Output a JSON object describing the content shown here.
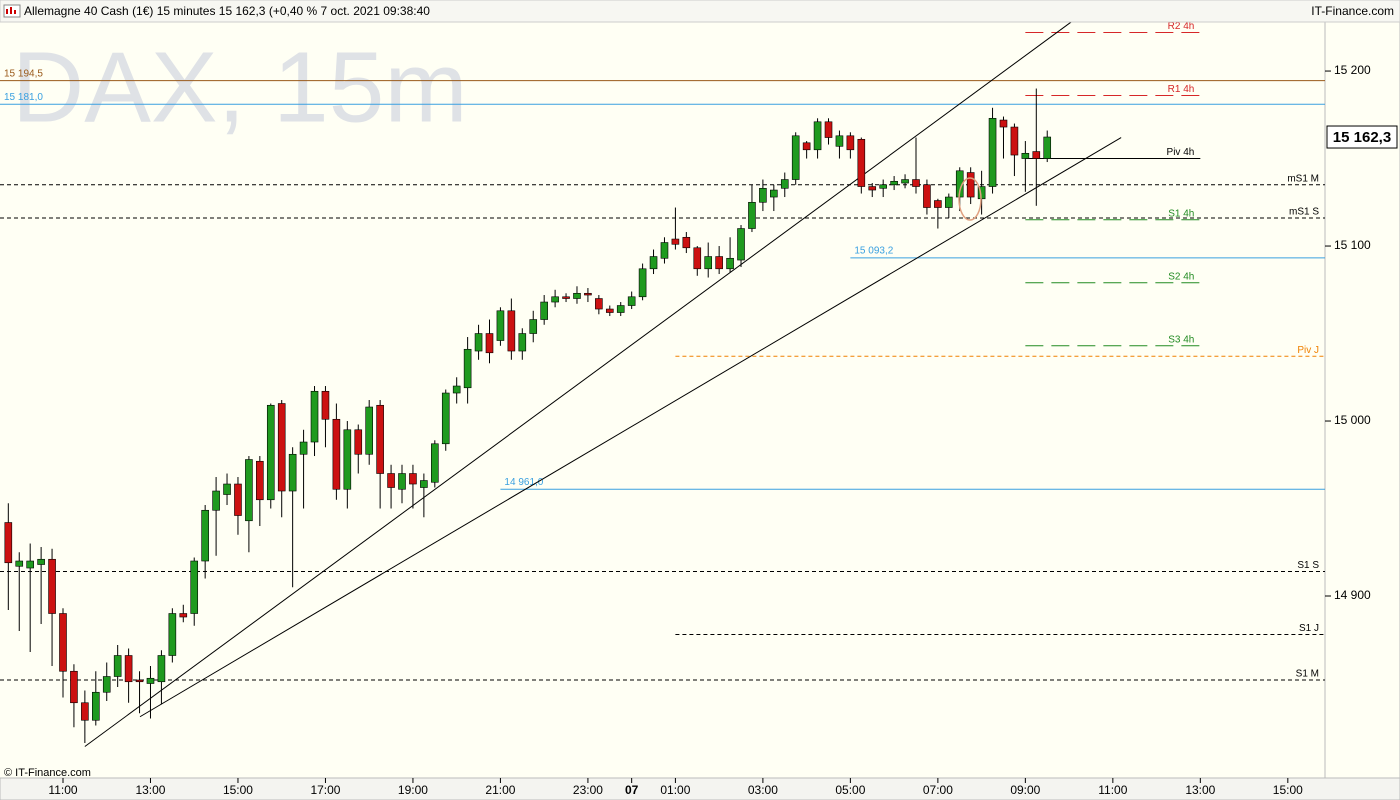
{
  "chart_data": {
    "type": "candlestick",
    "title": "Allemagne 40 Cash (1€) 15 minutes 15 162,3 (+0,40 % 7 oct. 2021 09:38:40",
    "source": "IT-Finance.com",
    "watermark": "DAX, 15m",
    "copyright": "© IT-Finance.com",
    "up_color": "#1f9a1f",
    "down_color": "#cc1111",
    "x": [
      9.75,
      10,
      10.25,
      10.5,
      10.75,
      11,
      11.25,
      11.5,
      11.75,
      12,
      12.25,
      12.5,
      12.75,
      13,
      13.25,
      13.5,
      13.75,
      14,
      14.25,
      14.5,
      14.75,
      15,
      15.25,
      15.5,
      15.75,
      16,
      16.25,
      16.5,
      16.75,
      17,
      17.25,
      17.5,
      17.75,
      18,
      18.25,
      18.5,
      18.75,
      19,
      19.25,
      19.5,
      19.75,
      20,
      20.25,
      20.5,
      20.75,
      21,
      21.25,
      21.5,
      21.75,
      22,
      22.25,
      22.5,
      22.75,
      23,
      23.25,
      23.5,
      23.75,
      24,
      24.25,
      24.5,
      24.75,
      25,
      25.25,
      25.5,
      25.75,
      26,
      26.25,
      26.5,
      26.75,
      27,
      27.25,
      27.5,
      27.75,
      28,
      28.25,
      28.5,
      28.75,
      29,
      29.25,
      29.5,
      29.75,
      30,
      30.25,
      30.5,
      30.75,
      31,
      31.25,
      31.5,
      31.75,
      32,
      32.25,
      32.5,
      32.75,
      33,
      33.25,
      33.5
    ],
    "open": [
      14942,
      14917,
      14916,
      14918,
      14921,
      14890,
      14857,
      14839,
      14829,
      14845,
      14854,
      14866,
      14852,
      14850,
      14851,
      14866,
      14890,
      14890,
      14920,
      14949,
      14958,
      14964,
      14943,
      14977,
      14955,
      15010,
      14960,
      14981,
      14988,
      15017,
      15001,
      14961,
      14995,
      14981,
      15009,
      14970,
      14961,
      14970,
      14962,
      14965,
      14987,
      15016,
      15019,
      15040,
      15050,
      15046,
      15063,
      15040,
      15050,
      15058,
      15068,
      15071,
      15070,
      15073,
      15070,
      15064,
      15062,
      15066,
      15071,
      15087,
      15093,
      15104,
      15105,
      15099,
      15087,
      15094,
      15087,
      15092,
      15110,
      15125,
      15128,
      15133,
      15138,
      15159,
      15155,
      15171,
      15157,
      15163,
      15161,
      15134,
      15133,
      15135,
      15136,
      15138,
      15135,
      15126,
      15122,
      15128,
      15142,
      15127,
      15134,
      15172,
      15168,
      15150,
      15154,
      15150
    ],
    "high": [
      14953,
      14925,
      14930,
      14928,
      14927,
      14893,
      14861,
      14846,
      14857,
      14862,
      14872,
      14870,
      14857,
      14860,
      14869,
      14893,
      14895,
      14922,
      14952,
      14968,
      14970,
      14968,
      14980,
      14980,
      15010,
      15012,
      14985,
      14995,
      15020,
      15020,
      15010,
      15000,
      14998,
      15012,
      15012,
      14975,
      14975,
      14975,
      14970,
      14989,
      15018,
      15025,
      15048,
      15055,
      15058,
      15065,
      15070,
      15053,
      15063,
      15072,
      15075,
      15073,
      15077,
      15076,
      15072,
      15066,
      15068,
      15074,
      15090,
      15098,
      15105,
      15122,
      15108,
      15100,
      15102,
      15100,
      15105,
      15112,
      15135,
      15138,
      15135,
      15142,
      15165,
      15160,
      15173,
      15173,
      15166,
      15165,
      15162,
      15136,
      15138,
      15140,
      15141,
      15162,
      15138,
      15127,
      15130,
      15145,
      15145,
      15143,
      15179,
      15174,
      15170,
      15160,
      15190,
      15166
    ],
    "low": [
      14892,
      14880,
      14868,
      14884,
      14860,
      14842,
      14825,
      14816,
      14826,
      14840,
      14848,
      14839,
      14833,
      14830,
      14838,
      14862,
      14885,
      14883,
      14910,
      14923,
      14952,
      14935,
      14925,
      14940,
      14950,
      14945,
      14905,
      14950,
      14980,
      14985,
      14955,
      14950,
      14970,
      14975,
      14950,
      14950,
      14953,
      14950,
      14945,
      14962,
      14983,
      15010,
      15010,
      15035,
      15033,
      15043,
      15035,
      15035,
      15045,
      15055,
      15065,
      15068,
      15067,
      15068,
      15061,
      15060,
      15060,
      15064,
      15069,
      15084,
      15090,
      15098,
      15096,
      15083,
      15082,
      15084,
      15085,
      15088,
      15108,
      15120,
      15120,
      15128,
      15135,
      15150,
      15150,
      15158,
      15150,
      15150,
      15130,
      15128,
      15128,
      15132,
      15133,
      15130,
      15118,
      15110,
      15116,
      15120,
      15124,
      15118,
      15130,
      15150,
      15140,
      15131,
      15123,
      15148
    ],
    "close": [
      14919,
      14920,
      14920,
      14921,
      14890,
      14857,
      14839,
      14829,
      14845,
      14854,
      14866,
      14851,
      14851,
      14853,
      14866,
      14890,
      14888,
      14920,
      14949,
      14960,
      14964,
      14946,
      14978,
      14955,
      15009,
      14960,
      14981,
      14988,
      15017,
      15001,
      14961,
      14995,
      14981,
      15008,
      14970,
      14962,
      14970,
      14964,
      14966,
      14987,
      15016,
      15020,
      15041,
      15050,
      15039,
      15063,
      15040,
      15050,
      15058,
      15068,
      15071,
      15070,
      15073,
      15072,
      15064,
      15062,
      15066,
      15071,
      15087,
      15094,
      15102,
      15101,
      15099,
      15087,
      15094,
      15087,
      15093,
      15110,
      15125,
      15133,
      15132,
      15138,
      15163,
      15155,
      15171,
      15162,
      15163,
      15155,
      15134,
      15132,
      15135,
      15137,
      15138,
      15134,
      15122,
      15122,
      15128,
      15143,
      15128,
      15134,
      15173,
      15168,
      15152,
      15153,
      15150,
      15162.3
    ],
    "last_price": {
      "value": 15162.3,
      "label": "15 162,3"
    },
    "xlim": [
      9.56,
      39.85
    ],
    "ylim": [
      14796,
      15240.6
    ],
    "xticks": [
      {
        "value": 11,
        "label": "11:00"
      },
      {
        "value": 13,
        "label": "13:00"
      },
      {
        "value": 15,
        "label": "15:00"
      },
      {
        "value": 17,
        "label": "17:00"
      },
      {
        "value": 19,
        "label": "19:00"
      },
      {
        "value": 21,
        "label": "21:00"
      },
      {
        "value": 23,
        "label": "23:00"
      },
      {
        "value": 24,
        "label": "07"
      },
      {
        "value": 25,
        "label": "01:00"
      },
      {
        "value": 27,
        "label": "03:00"
      },
      {
        "value": 29,
        "label": "05:00"
      },
      {
        "value": 31,
        "label": "07:00"
      },
      {
        "value": 33,
        "label": "09:00"
      },
      {
        "value": 35,
        "label": "11:00"
      },
      {
        "value": 37,
        "label": "13:00"
      },
      {
        "value": 39,
        "label": "15:00"
      }
    ],
    "yticks": [
      {
        "value": 14900,
        "label": "14 900"
      },
      {
        "value": 15000,
        "label": "15 000"
      },
      {
        "value": 15100,
        "label": "15 100"
      },
      {
        "value": 15200,
        "label": "15 200"
      }
    ],
    "trendlines": [
      {
        "x": [
          11.5,
          34.1
        ],
        "y": [
          14814,
          15229
        ]
      },
      {
        "x": [
          12.76,
          35.19
        ],
        "y": [
          14831,
          15162
        ]
      }
    ],
    "levels": [
      {
        "name": "R2 4h",
        "value": 15222,
        "color": "#d62728",
        "dashed": true,
        "x_start": 33,
        "x_end": 37
      },
      {
        "value": 15194.5,
        "value_label": "15 194,5",
        "color": "#9a5a1a",
        "dashed": false
      },
      {
        "name": "R1 4h",
        "value": 15186,
        "color": "#d62728",
        "dashed": true,
        "x_start": 33,
        "x_end": 37
      },
      {
        "value": 15181,
        "value_label": "15 181,0",
        "color": "#3aa0e0",
        "dashed": false
      },
      {
        "name": "Piv 4h",
        "value": 15150,
        "color": "#000000",
        "dashed": false,
        "x_start": 33,
        "x_end": 37
      },
      {
        "name": "mS1 M",
        "value": 15135,
        "color": "#000000",
        "dashed": true
      },
      {
        "name": "mS1 S",
        "value": 15116,
        "color": "#000000",
        "dashed": true
      },
      {
        "name": "S1 4h",
        "value": 15115,
        "color": "#228b22",
        "dashed": true,
        "x_start": 33,
        "x_end": 37
      },
      {
        "value": 15093.2,
        "value_label": "15 093,2",
        "color": "#3aa0e0",
        "dashed": false,
        "x_start": 29
      },
      {
        "name": "S2 4h",
        "value": 15079,
        "color": "#228b22",
        "dashed": true,
        "x_start": 33,
        "x_end": 37
      },
      {
        "name": "S3 4h",
        "value": 15043,
        "color": "#228b22",
        "dashed": true,
        "x_start": 33,
        "x_end": 37
      },
      {
        "name": "Piv J",
        "value": 15037,
        "color": "#f08000",
        "dashed": true,
        "x_start": 25
      },
      {
        "value": 14961,
        "value_label": "14 961,0",
        "color": "#3aa0e0",
        "dashed": false,
        "x_start": 21
      },
      {
        "name": "S1 S",
        "value": 14914,
        "color": "#000000",
        "dashed": true
      },
      {
        "name": "S1 J",
        "value": 14878,
        "color": "#000000",
        "dashed": true,
        "x_start": 25
      },
      {
        "name": "S1 M",
        "value": 14852,
        "color": "#000000",
        "dashed": true
      }
    ]
  }
}
